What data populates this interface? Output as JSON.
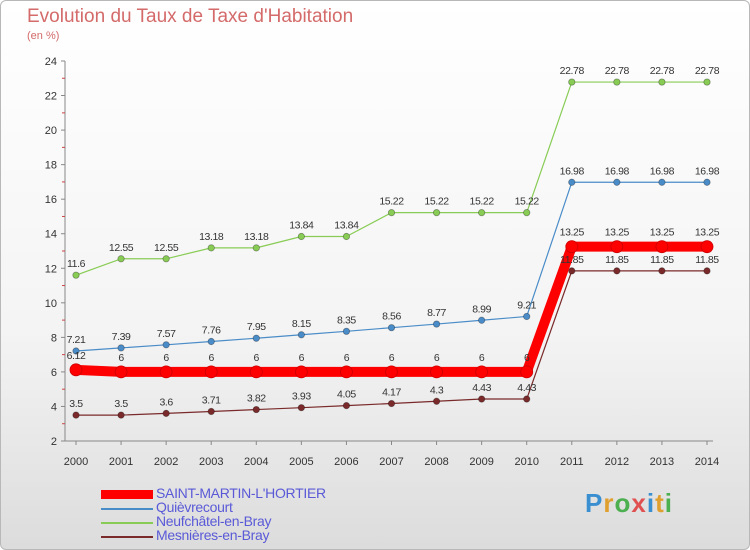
{
  "title": "Evolution du Taux de Taxe d'Habitation",
  "subtitle": "(en %)",
  "logo": {
    "letters": [
      "P",
      "r",
      "o",
      "x",
      "i",
      "t",
      "i"
    ],
    "colors": [
      "#3a8fd0",
      "#e0a030",
      "#4caf50",
      "#e05050",
      "#3a8fd0",
      "#e0a030",
      "#4caf50"
    ]
  },
  "chart_data": {
    "type": "line",
    "x": [
      2000,
      2001,
      2002,
      2003,
      2004,
      2005,
      2006,
      2007,
      2008,
      2009,
      2010,
      2011,
      2012,
      2013,
      2014
    ],
    "ylim": [
      2,
      24
    ],
    "yticks": [
      2,
      4,
      6,
      8,
      10,
      12,
      14,
      16,
      18,
      20,
      22,
      24
    ],
    "grid": false,
    "legend_position": "bottom-left",
    "series": [
      {
        "name": "SAINT-MARTIN-L'HORTIER",
        "color": "#ff0000",
        "values": [
          6.12,
          6,
          6,
          6,
          6,
          6,
          6,
          6,
          6,
          6,
          6,
          13.25,
          13.25,
          13.25,
          13.25
        ],
        "labels": [
          "6.12",
          "6",
          "6",
          "6",
          "6",
          "6",
          "6",
          "6",
          "6",
          "6",
          "6",
          "13.25",
          "13.25",
          "13.25",
          "13.25"
        ]
      },
      {
        "name": "Quièvrecourt",
        "color": "#4a8cc8",
        "values": [
          7.21,
          7.39,
          7.57,
          7.76,
          7.95,
          8.15,
          8.35,
          8.56,
          8.77,
          8.99,
          9.21,
          16.98,
          16.98,
          16.98,
          16.98
        ],
        "labels": [
          "7.21",
          "7.39",
          "7.57",
          "7.76",
          "7.95",
          "8.15",
          "8.35",
          "8.56",
          "8.77",
          "8.99",
          "9.21",
          "16.98",
          "16.98",
          "16.98",
          "16.98"
        ]
      },
      {
        "name": "Neufchâtel-en-Bray",
        "color": "#88cc55",
        "values": [
          11.6,
          12.55,
          12.55,
          13.18,
          13.18,
          13.84,
          13.84,
          15.22,
          15.22,
          15.22,
          15.22,
          22.78,
          22.78,
          22.78,
          22.78
        ],
        "labels": [
          "11.6",
          "12.55",
          "12.55",
          "13.18",
          "13.18",
          "13.84",
          "13.84",
          "15.22",
          "15.22",
          "15.22",
          "15.22",
          "22.78",
          "22.78",
          "22.78",
          "22.78"
        ]
      },
      {
        "name": "Mesnières-en-Bray",
        "color": "#7a2a2a",
        "values": [
          3.5,
          3.5,
          3.6,
          3.71,
          3.82,
          3.93,
          4.05,
          4.17,
          4.3,
          4.43,
          4.43,
          11.85,
          11.85,
          11.85,
          11.85
        ],
        "labels": [
          "3.5",
          "3.5",
          "3.6",
          "3.71",
          "3.82",
          "3.93",
          "4.05",
          "4.17",
          "4.3",
          "4.43",
          "4.43",
          "11.85",
          "11.85",
          "11.85",
          "11.85"
        ]
      }
    ]
  }
}
